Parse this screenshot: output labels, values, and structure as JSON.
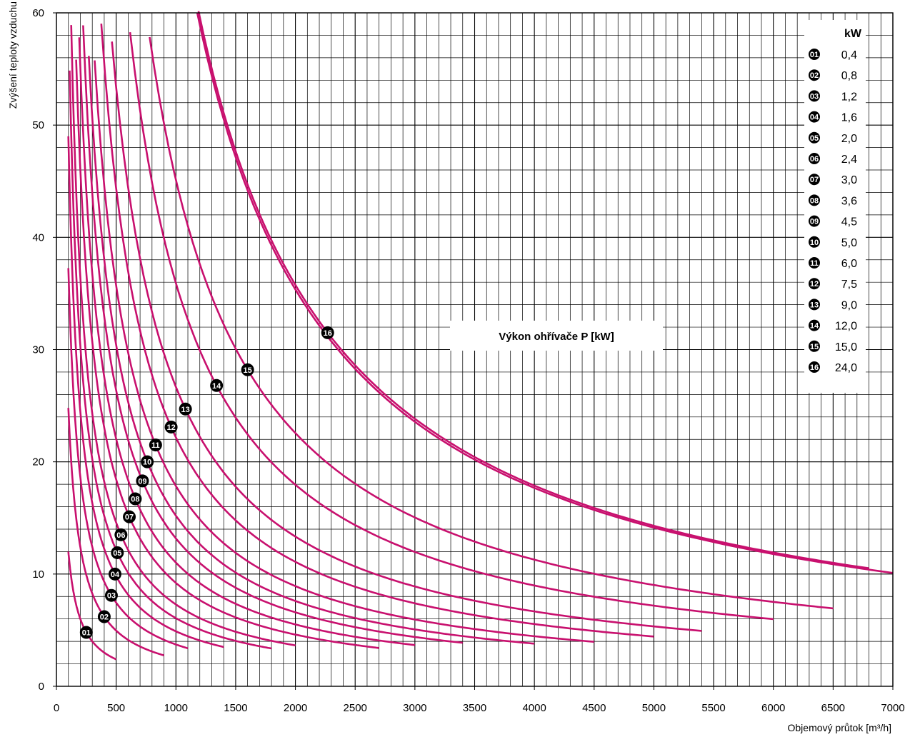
{
  "chart_data": {
    "type": "line",
    "title": "",
    "xlabel": "Objemový průtok [m³/h]",
    "ylabel": "Zvýšení teploty vzduchu",
    "xlim": [
      0,
      7000
    ],
    "ylim": [
      0,
      60
    ],
    "x_ticks": [
      "0",
      "500",
      "1000",
      "1500",
      "2000",
      "2500",
      "3000",
      "3500",
      "4000",
      "4500",
      "5000",
      "5500",
      "6000",
      "6500",
      "7000"
    ],
    "y_ticks": [
      "0",
      "10",
      "20",
      "30",
      "40",
      "50",
      "60"
    ],
    "grid": true,
    "minor_grid_x_step": 100,
    "minor_grid_y_step": 2,
    "annotation": "Výkon ohřívače  P [kW]",
    "legend": {
      "header": "kW",
      "placement": "top-right",
      "entries": [
        {
          "marker": "01",
          "value": "0,4"
        },
        {
          "marker": "02",
          "value": "0,8"
        },
        {
          "marker": "03",
          "value": "1,2"
        },
        {
          "marker": "04",
          "value": "1,6"
        },
        {
          "marker": "05",
          "value": "2,0"
        },
        {
          "marker": "06",
          "value": "2,4"
        },
        {
          "marker": "07",
          "value": "3,0"
        },
        {
          "marker": "08",
          "value": "3,6"
        },
        {
          "marker": "09",
          "value": "4,5"
        },
        {
          "marker": "10",
          "value": "5,0"
        },
        {
          "marker": "11",
          "value": "6,0"
        },
        {
          "marker": "12",
          "value": "7,5"
        },
        {
          "marker": "13",
          "value": "9,0"
        },
        {
          "marker": "14",
          "value": "12,0"
        },
        {
          "marker": "15",
          "value": "15,0"
        },
        {
          "marker": "16",
          "value": "24,0"
        }
      ]
    },
    "series_color": "#c8106e",
    "series": [
      {
        "marker": "01",
        "power_kw": 0.4,
        "x_range": [
          100,
          500
        ],
        "label_at": [
          250,
          4.8
        ]
      },
      {
        "marker": "02",
        "power_kw": 0.8,
        "x_range": [
          100,
          900
        ],
        "label_at": [
          400,
          6.2
        ]
      },
      {
        "marker": "03",
        "power_kw": 1.2,
        "x_range": [
          100,
          1100
        ],
        "label_at": [
          460,
          8.1
        ]
      },
      {
        "marker": "04",
        "power_kw": 1.6,
        "x_range": [
          100,
          1400
        ],
        "label_at": [
          490,
          10.0
        ]
      },
      {
        "marker": "05",
        "power_kw": 2.0,
        "x_range": [
          100,
          1800
        ],
        "label_at": [
          510,
          11.9
        ]
      },
      {
        "marker": "06",
        "power_kw": 2.4,
        "x_range": [
          100,
          2000
        ],
        "label_at": [
          540,
          13.5
        ]
      },
      {
        "marker": "07",
        "power_kw": 3.0,
        "x_range": [
          100,
          2700
        ],
        "label_at": [
          610,
          15.1
        ]
      },
      {
        "marker": "08",
        "power_kw": 3.6,
        "x_range": [
          100,
          3000
        ],
        "label_at": [
          660,
          16.7
        ]
      },
      {
        "marker": "09",
        "power_kw": 4.5,
        "x_range": [
          100,
          3400
        ],
        "label_at": [
          720,
          18.3
        ]
      },
      {
        "marker": "10",
        "power_kw": 5.0,
        "x_range": [
          100,
          4000
        ],
        "label_at": [
          760,
          20.0
        ]
      },
      {
        "marker": "11",
        "power_kw": 6.0,
        "x_range": [
          100,
          4500
        ],
        "label_at": [
          830,
          21.5
        ]
      },
      {
        "marker": "12",
        "power_kw": 7.5,
        "x_range": [
          100,
          5000
        ],
        "label_at": [
          960,
          23.1
        ]
      },
      {
        "marker": "13",
        "power_kw": 9.0,
        "x_range": [
          100,
          5400
        ],
        "label_at": [
          1080,
          24.7
        ]
      },
      {
        "marker": "14",
        "power_kw": 12.0,
        "x_range": [
          100,
          6000
        ],
        "label_at": [
          1340,
          26.8
        ]
      },
      {
        "marker": "15",
        "power_kw": 15.0,
        "x_range": [
          100,
          6500
        ],
        "label_at": [
          1600,
          28.2
        ]
      },
      {
        "marker": "16",
        "power_kw": 24.0,
        "x_range": [
          100,
          6800
        ],
        "label_at": [
          2270,
          31.5
        ]
      }
    ],
    "extra_curve": {
      "x_range": [
        100,
        7000
      ],
      "y_at_x": [
        [
          2270,
          31.5
        ],
        [
          7000,
          10.1
        ]
      ]
    }
  }
}
